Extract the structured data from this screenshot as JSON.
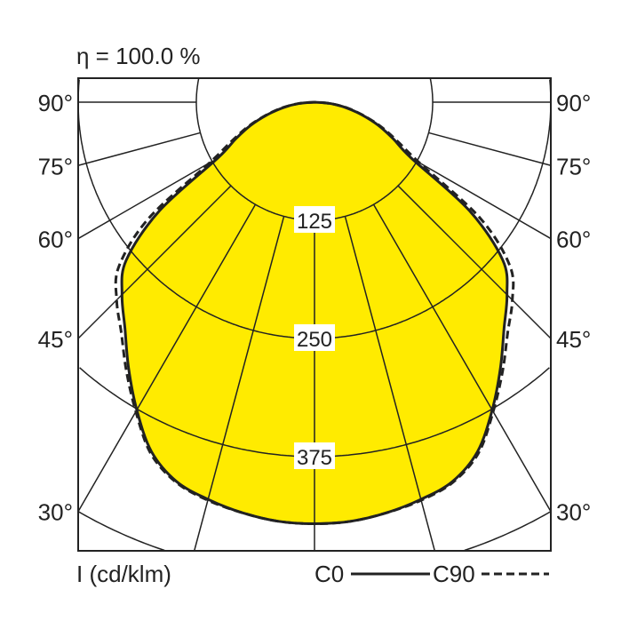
{
  "chart_data": {
    "type": "polar-line",
    "title": "η = 100.0 %",
    "unit_label": "I (cd/klm)",
    "radial_ticks": [
      125,
      250,
      375,
      500
    ],
    "radial_tick_labels": [
      "125",
      "250",
      "375"
    ],
    "angle_ticks": [
      0,
      15,
      30,
      45,
      60,
      75,
      90
    ],
    "angle_tick_labels": [
      "90°",
      "75°",
      "60°",
      "45°",
      "30°"
    ],
    "fill_color": "#ffeb00",
    "line_color": "#222222",
    "series": [
      {
        "name": "C0",
        "style": "solid",
        "angles": [
          0,
          5,
          10,
          15,
          20,
          25,
          30,
          35,
          40,
          45,
          50,
          55,
          60,
          65,
          70,
          75,
          80,
          85,
          90
        ],
        "values": [
          446,
          445,
          441,
          435,
          427,
          408,
          376,
          343,
          312,
          288,
          260,
          200,
          118,
          92,
          72,
          52,
          34,
          17,
          0
        ]
      },
      {
        "name": "C90",
        "style": "dashed",
        "angles": [
          0,
          5,
          10,
          15,
          20,
          25,
          30,
          35,
          40,
          45,
          50,
          55,
          60,
          65,
          70,
          75,
          80,
          85,
          90
        ],
        "values": [
          446,
          445,
          441,
          436,
          428,
          410,
          378,
          347,
          318,
          296,
          270,
          214,
          128,
          96,
          74,
          53,
          35,
          17,
          0
        ]
      }
    ]
  }
}
